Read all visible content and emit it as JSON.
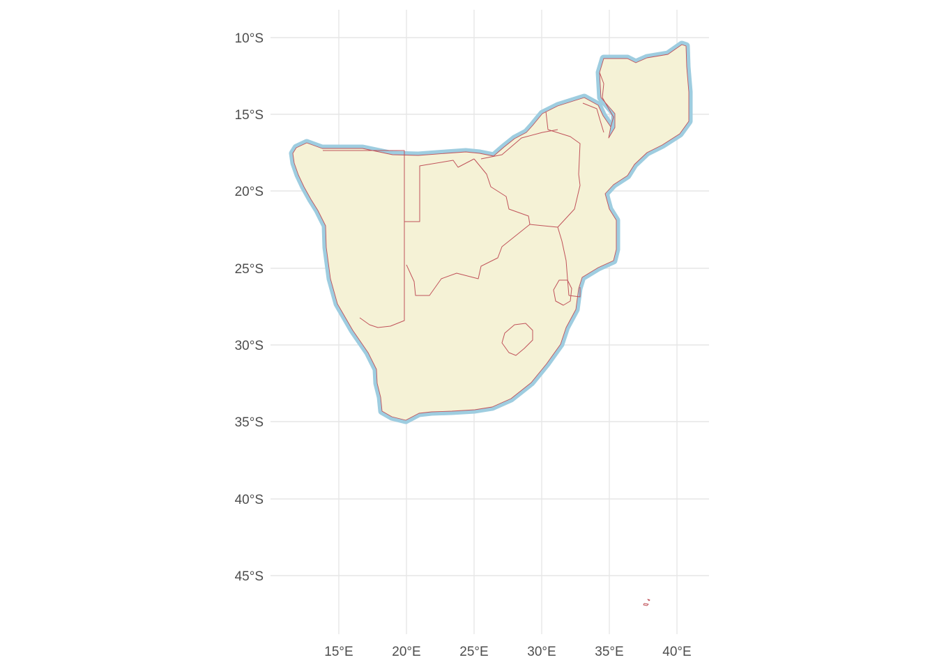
{
  "map": {
    "axes": {
      "x_ticks": [
        "15°E",
        "20°E",
        "25°E",
        "30°E",
        "35°E",
        "40°E"
      ],
      "y_ticks": [
        "10°S",
        "15°S",
        "20°S",
        "25°S",
        "30°S",
        "35°S",
        "40°S",
        "45°S"
      ]
    },
    "colors": {
      "land": "#f5f2d6",
      "border": "#c0525a",
      "coast_halo": "#9ecde0",
      "grid": "#e6e6e6",
      "background": "#ffffff"
    },
    "region": "Southern Africa",
    "lon_range": [
      11.7,
      40.8
    ],
    "lat_range": [
      -10.5,
      -46.9
    ]
  }
}
